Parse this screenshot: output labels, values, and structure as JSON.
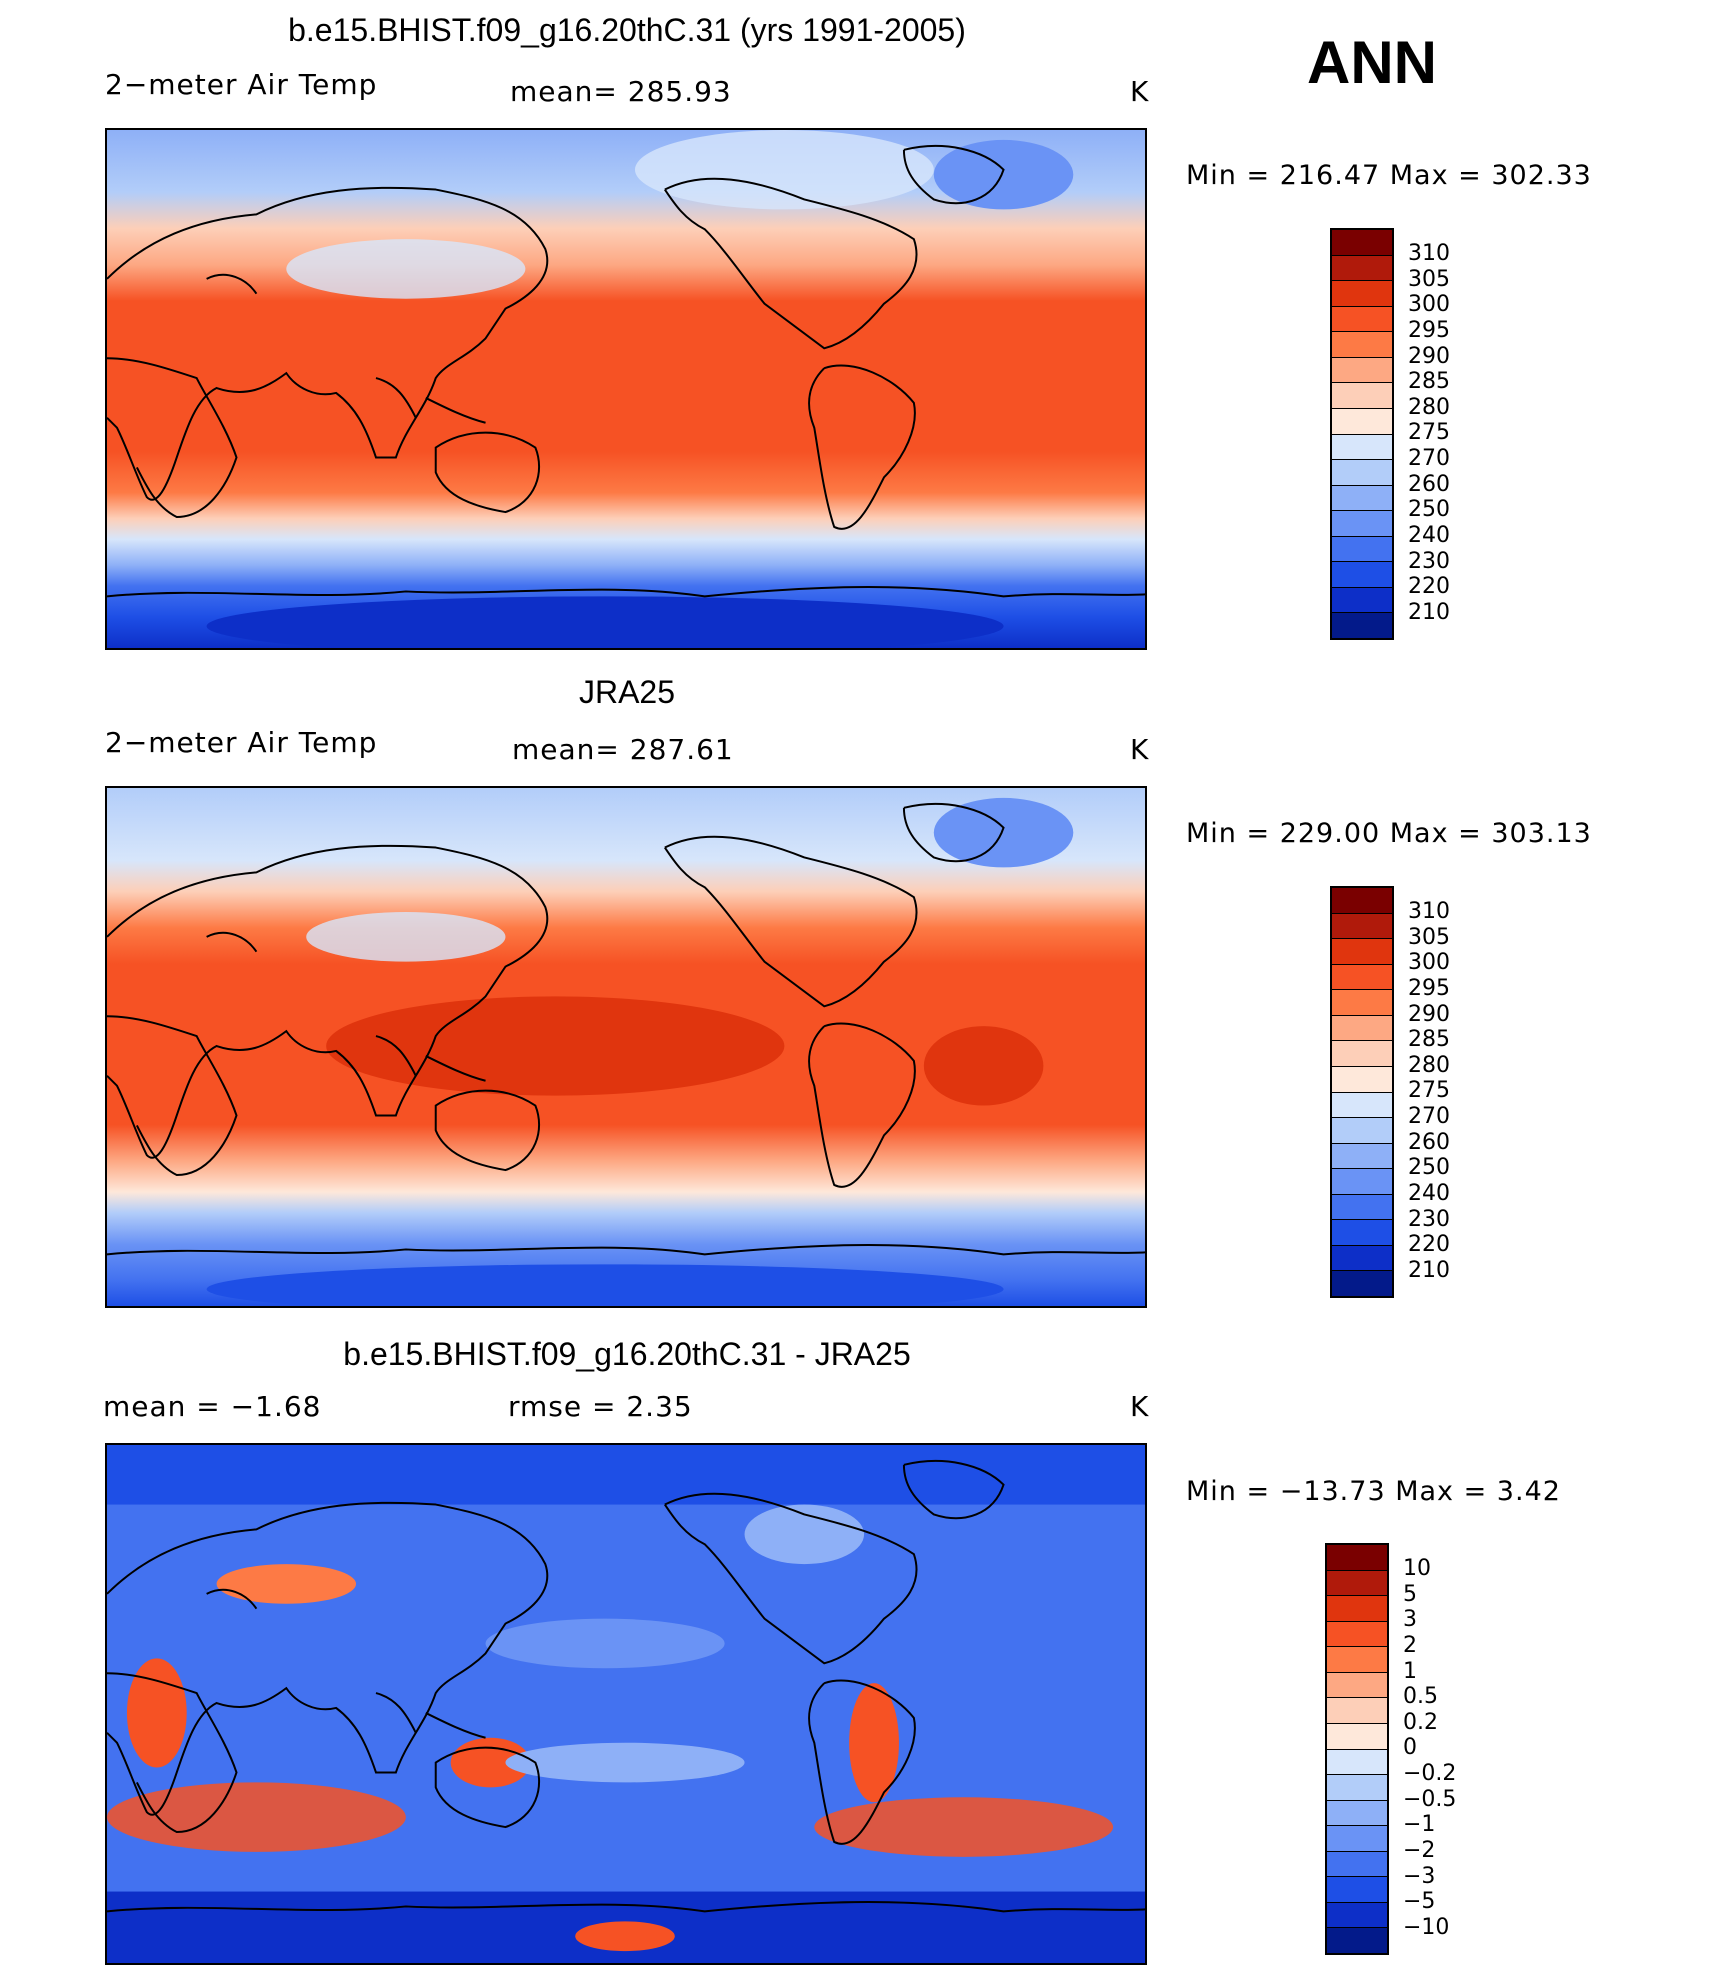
{
  "season": "ANN",
  "units": "K",
  "colors": {
    "temp": [
      "#7a0000",
      "#b01a0b",
      "#e0350e",
      "#f65224",
      "#fd7a45",
      "#fda883",
      "#fdcfb8",
      "#fee8da",
      "#d7e6fb",
      "#b2cdf9",
      "#8eb0f7",
      "#6a93f5",
      "#4372f0",
      "#1e4fe6",
      "#0d2fc8",
      "#031a8a"
    ],
    "diff": [
      "#7a0000",
      "#b01a0b",
      "#e0350e",
      "#f65224",
      "#fd7a45",
      "#fda883",
      "#fdcfb8",
      "#fee8da",
      "#d7e6fb",
      "#b2cdf9",
      "#8eb0f7",
      "#6a93f5",
      "#4372f0",
      "#1e4fe6",
      "#0d2fc8",
      "#031a8a"
    ]
  },
  "panels": [
    {
      "title": "b.e15.BHIST.f09_g16.20thC.31 (yrs 1991-2005)",
      "left_label": "2−meter Air Temp",
      "stat": "mean=  285.93",
      "units": "K",
      "minmax": "Min  =  216.47  Max  =  302.33",
      "legend_kind": "temp",
      "legend": [
        "310",
        "305",
        "300",
        "295",
        "290",
        "285",
        "280",
        "275",
        "270",
        "260",
        "250",
        "240",
        "230",
        "220",
        "210"
      ]
    },
    {
      "title": "JRA25",
      "left_label": "2−meter Air Temp",
      "stat": "mean=  287.61",
      "units": "K",
      "minmax": "Min  =  229.00  Max  =  303.13",
      "legend_kind": "temp",
      "legend": [
        "310",
        "305",
        "300",
        "295",
        "290",
        "285",
        "280",
        "275",
        "270",
        "260",
        "250",
        "240",
        "230",
        "220",
        "210"
      ]
    },
    {
      "title": "b.e15.BHIST.f09_g16.20thC.31 - JRA25",
      "left_label": "mean  =    −1.68",
      "stat": "rmse  =     2.35",
      "units": "K",
      "minmax": "Min  =  −13.73  Max  =     3.42",
      "legend_kind": "diff",
      "legend": [
        "10",
        "5",
        "3",
        "2",
        "1",
        "0.5",
        "0.2",
        "0",
        "−0.2",
        "−0.5",
        "−1",
        "−2",
        "−3",
        "−5",
        "−10"
      ]
    }
  ]
}
